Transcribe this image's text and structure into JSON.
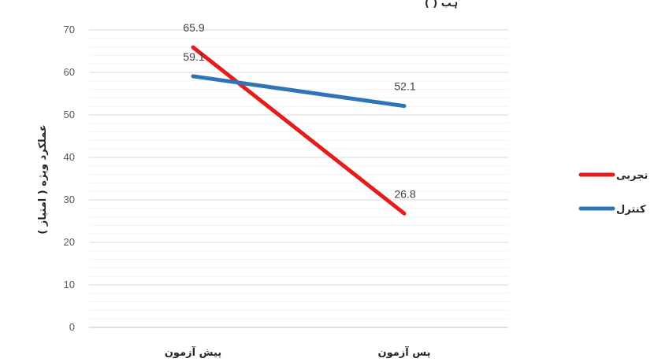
{
  "top_text": "( ) ہب",
  "chart_data": {
    "type": "line",
    "categories": [
      "پیش آزمون",
      "پس آزمون"
    ],
    "series": [
      {
        "name": "تجربی",
        "values": [
          65.9,
          26.8
        ],
        "color": "#e51c1c",
        "labels": [
          "65.9",
          "26.8"
        ]
      },
      {
        "name": "کنترل",
        "values": [
          59.1,
          52.1
        ],
        "color": "#2e75b6",
        "labels": [
          "59.1",
          "52.1"
        ]
      }
    ],
    "ylabel": "عملکرد ویژه ( امتیاز )",
    "ylim": [
      0,
      70
    ],
    "yticks": [
      "0",
      "10",
      "20",
      "30",
      "40",
      "50",
      "60",
      "70"
    ],
    "grid": true,
    "legend": "right"
  }
}
